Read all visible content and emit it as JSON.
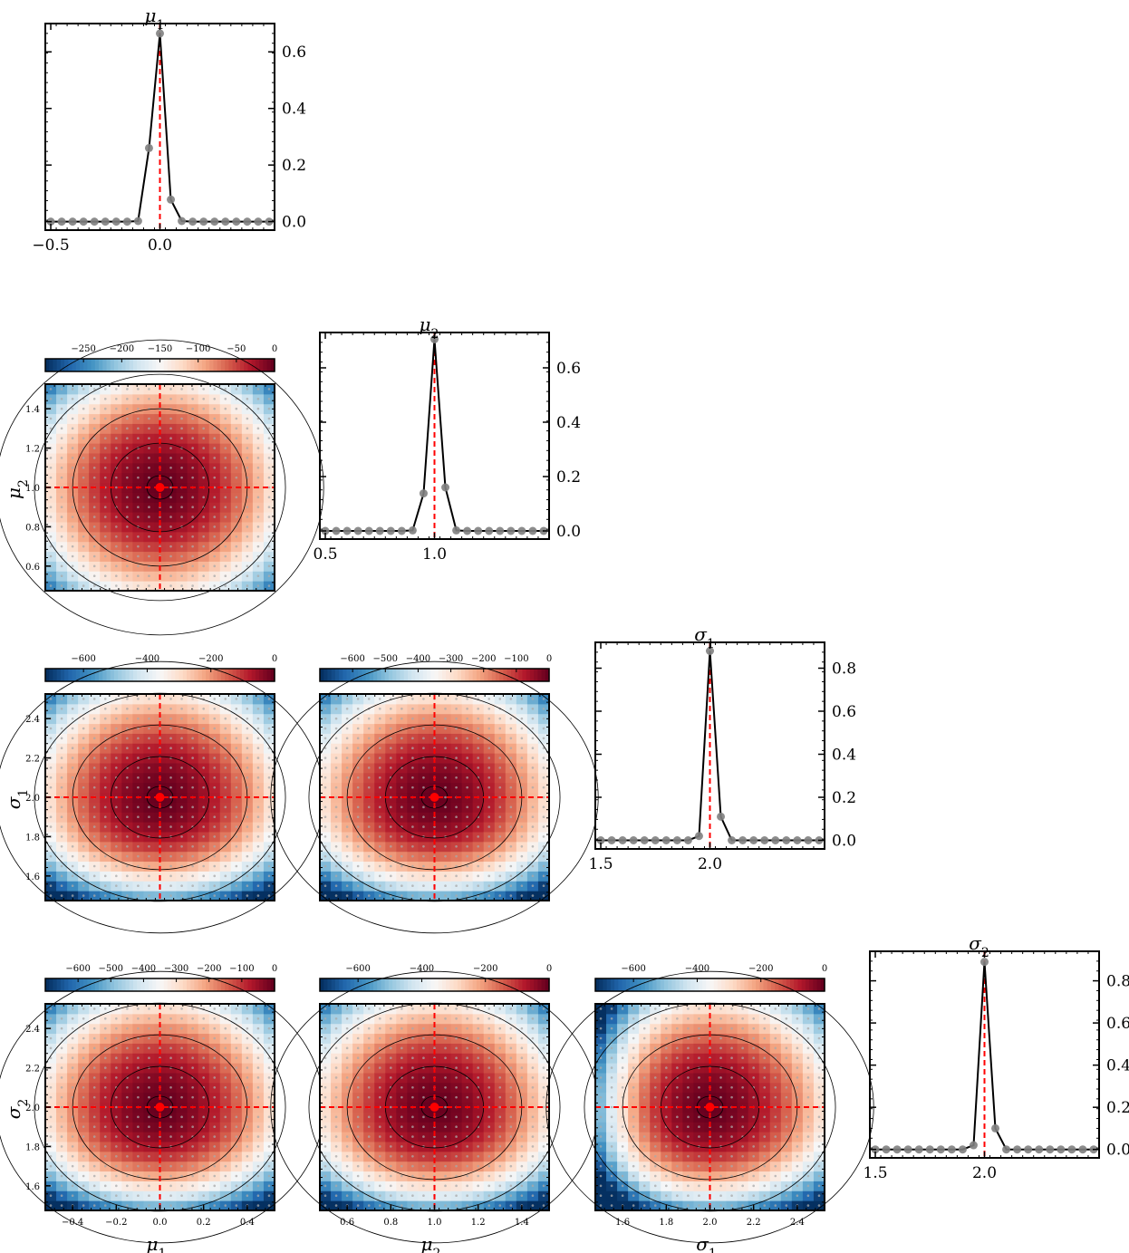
{
  "chart_data": {
    "type": "corner",
    "parameters": [
      {
        "key": "mu1",
        "label_base": "μ",
        "label_sub": "1",
        "truth": 0.0,
        "range": [
          -0.525,
          0.525
        ]
      },
      {
        "key": "mu2",
        "label_base": "μ",
        "label_sub": "2",
        "truth": 1.0,
        "range": [
          0.475,
          1.525
        ]
      },
      {
        "key": "s1",
        "label_base": "σ",
        "label_sub": "1",
        "truth": 2.0,
        "range": [
          1.475,
          2.525
        ]
      },
      {
        "key": "s2",
        "label_base": "σ",
        "label_sub": "2",
        "truth": 2.0,
        "range": [
          1.475,
          2.525
        ]
      }
    ],
    "marginals": [
      {
        "param": "mu1",
        "x": [
          -0.5,
          -0.45,
          -0.4,
          -0.35,
          -0.3,
          -0.25,
          -0.2,
          -0.15,
          -0.1,
          -0.05,
          0.0,
          0.05,
          0.1,
          0.15,
          0.2,
          0.25,
          0.3,
          0.35,
          0.4,
          0.45,
          0.5
        ],
        "y": [
          0,
          0,
          0,
          0,
          0,
          0,
          0,
          0,
          0.002,
          0.26,
          0.665,
          0.078,
          0.002,
          0,
          0,
          0,
          0,
          0,
          0,
          0,
          0
        ],
        "x_ticks": [
          -0.5,
          0.0
        ],
        "x_tick_labels": [
          "−0.5",
          "0.0"
        ],
        "y_ticks": [
          0.0,
          0.2,
          0.4,
          0.6
        ],
        "y_tick_labels": [
          "0.0",
          "0.2",
          "0.4",
          "0.6"
        ],
        "ylim": [
          -0.03,
          0.7
        ]
      },
      {
        "param": "mu2",
        "x": [
          0.5,
          0.55,
          0.6,
          0.65,
          0.7,
          0.75,
          0.8,
          0.85,
          0.9,
          0.95,
          1.0,
          1.05,
          1.1,
          1.15,
          1.2,
          1.25,
          1.3,
          1.35,
          1.4,
          1.45,
          1.5
        ],
        "y": [
          0,
          0,
          0,
          0,
          0,
          0,
          0,
          0,
          0.002,
          0.138,
          0.705,
          0.16,
          0.002,
          0,
          0,
          0,
          0,
          0,
          0,
          0,
          0
        ],
        "x_ticks": [
          0.5,
          1.0
        ],
        "x_tick_labels": [
          "0.5",
          "1.0"
        ],
        "y_ticks": [
          0.0,
          0.2,
          0.4,
          0.6
        ],
        "y_tick_labels": [
          "0.0",
          "0.2",
          "0.4",
          "0.6"
        ],
        "ylim": [
          -0.03,
          0.73
        ]
      },
      {
        "param": "s1",
        "x": [
          1.5,
          1.55,
          1.6,
          1.65,
          1.7,
          1.75,
          1.8,
          1.85,
          1.9,
          1.95,
          2.0,
          2.05,
          2.1,
          2.15,
          2.2,
          2.25,
          2.3,
          2.35,
          2.4,
          2.45,
          2.5
        ],
        "y": [
          0,
          0,
          0,
          0,
          0,
          0,
          0,
          0,
          0,
          0.02,
          0.88,
          0.11,
          0,
          0,
          0,
          0,
          0,
          0,
          0,
          0,
          0
        ],
        "x_ticks": [
          1.5,
          2.0
        ],
        "x_tick_labels": [
          "1.5",
          "2.0"
        ],
        "y_ticks": [
          0.0,
          0.2,
          0.4,
          0.6,
          0.8
        ],
        "y_tick_labels": [
          "0.0",
          "0.2",
          "0.4",
          "0.6",
          "0.8"
        ],
        "ylim": [
          -0.04,
          0.92
        ]
      },
      {
        "param": "s2",
        "x": [
          1.5,
          1.55,
          1.6,
          1.65,
          1.7,
          1.75,
          1.8,
          1.85,
          1.9,
          1.95,
          2.0,
          2.05,
          2.1,
          2.15,
          2.2,
          2.25,
          2.3,
          2.35,
          2.4,
          2.45,
          2.5
        ],
        "y": [
          0,
          0,
          0,
          0,
          0,
          0,
          0,
          0,
          0,
          0.02,
          0.89,
          0.1,
          0,
          0,
          0,
          0,
          0,
          0,
          0,
          0,
          0
        ],
        "x_ticks": [
          1.5,
          2.0
        ],
        "x_tick_labels": [
          "1.5",
          "2.0"
        ],
        "y_ticks": [
          0.0,
          0.2,
          0.4,
          0.6,
          0.8
        ],
        "y_tick_labels": [
          "0.0",
          "0.2",
          "0.4",
          "0.6",
          "0.8"
        ],
        "ylim": [
          -0.04,
          0.94
        ]
      }
    ],
    "pairs": [
      {
        "x": "mu1",
        "y": "mu2",
        "min_value": -300,
        "max_value": 0,
        "colorbar_ticks": [
          -250,
          -200,
          -150,
          -100,
          -50,
          0
        ],
        "colorbar_tick_labels": [
          "−250",
          "−200",
          "−150",
          "−100",
          "−50",
          "0"
        ],
        "y_ticks": [
          0.6,
          0.8,
          1.0,
          1.2,
          1.4
        ],
        "y_tick_labels": [
          "0.6",
          "0.8",
          "1.0",
          "1.2",
          "1.4"
        ]
      },
      {
        "x": "mu1",
        "y": "s1",
        "min_value": -720,
        "max_value": 0,
        "colorbar_ticks": [
          -600,
          -400,
          -200,
          0
        ],
        "colorbar_tick_labels": [
          "−600",
          "−400",
          "−200",
          "0"
        ],
        "y_ticks": [
          1.6,
          1.8,
          2.0,
          2.2,
          2.4
        ],
        "y_tick_labels": [
          "1.6",
          "1.8",
          "2.0",
          "2.2",
          "2.4"
        ]
      },
      {
        "x": "mu2",
        "y": "s1",
        "min_value": -700,
        "max_value": 0,
        "colorbar_ticks": [
          -600,
          -500,
          -400,
          -300,
          -200,
          -100,
          0
        ],
        "colorbar_tick_labels": [
          "−600",
          "−500",
          "−400",
          "−300",
          "−200",
          "−100",
          "0"
        ]
      },
      {
        "x": "mu1",
        "y": "s2",
        "min_value": -700,
        "max_value": 0,
        "colorbar_ticks": [
          -600,
          -500,
          -400,
          -300,
          -200,
          -100,
          0
        ],
        "colorbar_tick_labels": [
          "−600",
          "−500",
          "−400",
          "−300",
          "−200",
          "−100",
          "0"
        ],
        "y_ticks": [
          1.6,
          1.8,
          2.0,
          2.2,
          2.4
        ],
        "y_tick_labels": [
          "1.6",
          "1.8",
          "2.0",
          "2.2",
          "2.4"
        ],
        "x_ticks": [
          -0.4,
          -0.2,
          0.0,
          0.2,
          0.4
        ],
        "x_tick_labels": [
          "−0.4",
          "−0.2",
          "0.0",
          "0.2",
          "0.4"
        ]
      },
      {
        "x": "mu2",
        "y": "s2",
        "min_value": -720,
        "max_value": 0,
        "colorbar_ticks": [
          -600,
          -400,
          -200,
          0
        ],
        "colorbar_tick_labels": [
          "−600",
          "−400",
          "−200",
          "0"
        ],
        "x_ticks": [
          0.6,
          0.8,
          1.0,
          1.2,
          1.4
        ],
        "x_tick_labels": [
          "0.6",
          "0.8",
          "1.0",
          "1.2",
          "1.4"
        ]
      },
      {
        "x": "s1",
        "y": "s2",
        "min_value": -720,
        "max_value": 0,
        "colorbar_ticks": [
          -600,
          -400,
          -200,
          0
        ],
        "colorbar_tick_labels": [
          "−600",
          "−400",
          "−200",
          "0"
        ],
        "x_ticks": [
          1.6,
          1.8,
          2.0,
          2.2,
          2.4
        ],
        "x_tick_labels": [
          "1.6",
          "1.8",
          "2.0",
          "2.2",
          "2.4"
        ]
      }
    ],
    "colormap": "RdBu_r",
    "colors": {
      "truth_line": "#ff0000",
      "curve": "#000000",
      "grid_point": "#808080",
      "contour": "#000000"
    },
    "grid": false
  }
}
